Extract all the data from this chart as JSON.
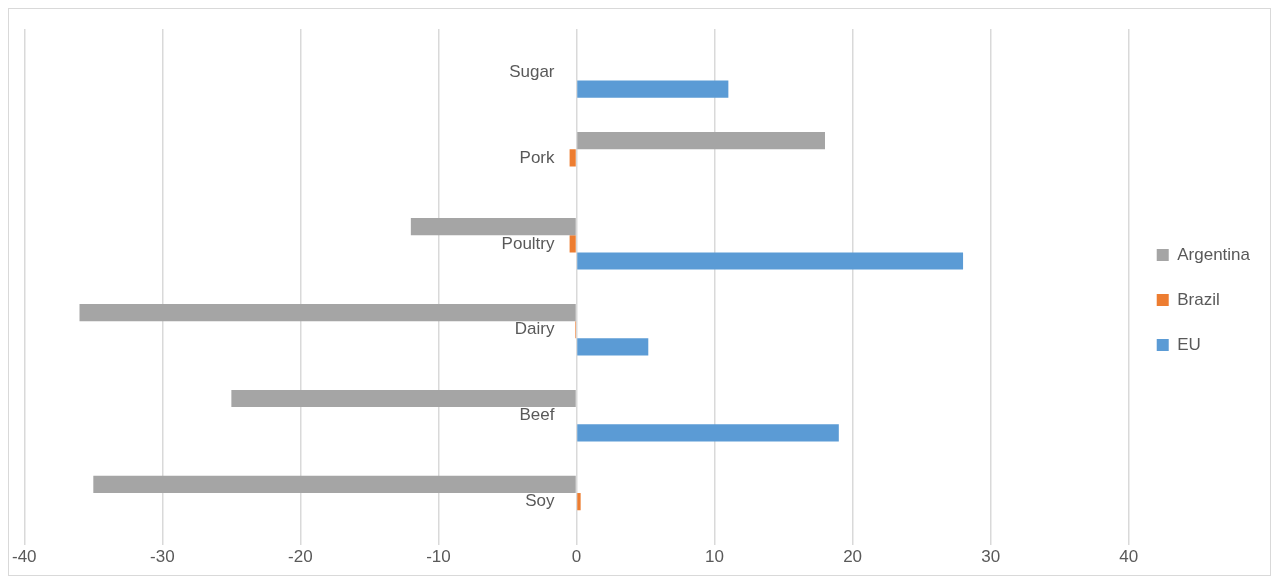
{
  "chart_data": {
    "type": "bar",
    "orientation": "horizontal",
    "categories": [
      "Sugar",
      "Pork",
      "Poultry",
      "Dairy",
      "Beef",
      "Soy"
    ],
    "series": [
      {
        "name": "Argentina",
        "color": "#a5a5a5",
        "values": [
          null,
          18,
          -12,
          -36,
          -25,
          -35
        ]
      },
      {
        "name": "Brazil",
        "color": "#ed7d31",
        "values": [
          0,
          -0.5,
          -0.5,
          -0.1,
          0,
          0.3
        ]
      },
      {
        "name": "EU",
        "color": "#5b9bd5",
        "values": [
          11,
          null,
          28,
          5.2,
          19,
          null
        ]
      }
    ],
    "xlim": [
      -40,
      40
    ],
    "xticks": [
      -40,
      -30,
      -20,
      -10,
      0,
      10,
      20,
      30,
      40
    ],
    "grid": "x",
    "legend": "right"
  }
}
